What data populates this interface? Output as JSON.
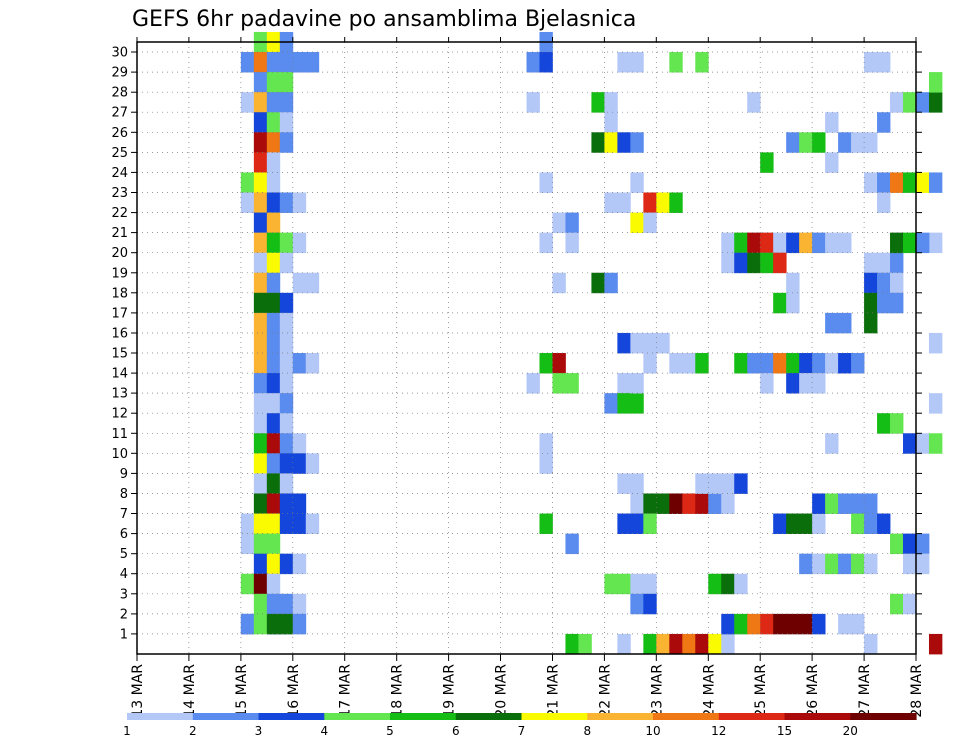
{
  "chart_data": {
    "type": "heatmap",
    "title": "GEFS 6hr padavine po ansamblima Bjelasnica",
    "y_ticks": [
      "1",
      "2",
      "3",
      "4",
      "5",
      "6",
      "7",
      "8",
      "9",
      "10",
      "11",
      "12",
      "13",
      "14",
      "15",
      "16",
      "17",
      "18",
      "19",
      "20",
      "21",
      "22",
      "23",
      "24",
      "25",
      "26",
      "27",
      "28",
      "29",
      "30"
    ],
    "x_ticks": [
      "13 MAR",
      "14 MAR",
      "15 MAR",
      "16 MAR",
      "17 MAR",
      "18 MAR",
      "19 MAR",
      "20 MAR",
      "21 MAR",
      "22 MAR",
      "23 MAR",
      "24 MAR",
      "25 MAR",
      "26 MAR",
      "27 MAR",
      "28 MAR"
    ],
    "legend_labels": [
      "1",
      "2",
      "3",
      "4",
      "5",
      "6",
      "7",
      "8",
      "10",
      "12",
      "15",
      "20"
    ],
    "legend_colors": [
      "#b4c8f8",
      "#5a8cf0",
      "#1446dc",
      "#64e650",
      "#14be14",
      "#0a6e0a",
      "#fafa00",
      "#fab432",
      "#f07814",
      "#dc2814",
      "#aa0a0a",
      "#6e0000"
    ],
    "x_columns_per_day": 4,
    "x_start_day": 13,
    "ylim": [
      0,
      30
    ],
    "grid": true,
    "cells": [
      [
        8,
        1,
        2
      ],
      [
        10,
        1,
        3
      ],
      [
        10,
        2,
        3
      ],
      [
        11,
        1,
        2
      ],
      [
        9,
        30,
        4
      ],
      [
        10,
        30,
        7
      ],
      [
        11,
        30,
        2
      ],
      [
        8,
        29,
        2
      ],
      [
        9,
        29,
        9
      ],
      [
        10,
        29,
        2
      ],
      [
        11,
        29,
        2
      ],
      [
        9,
        28,
        2
      ],
      [
        10,
        28,
        4
      ],
      [
        11,
        28,
        4
      ],
      [
        8,
        27,
        1
      ],
      [
        9,
        27,
        8
      ],
      [
        10,
        27,
        2
      ],
      [
        11,
        27,
        2
      ],
      [
        9,
        26,
        3
      ],
      [
        10,
        26,
        4
      ],
      [
        11,
        26,
        1
      ],
      [
        9,
        25,
        11
      ],
      [
        10,
        25,
        9
      ],
      [
        11,
        25,
        2
      ],
      [
        9,
        24,
        10
      ],
      [
        10,
        24,
        1
      ],
      [
        8,
        23,
        4
      ],
      [
        9,
        23,
        7
      ],
      [
        10,
        23,
        1
      ],
      [
        8,
        22,
        1
      ],
      [
        9,
        22,
        8
      ],
      [
        10,
        22,
        3
      ],
      [
        11,
        22,
        2
      ],
      [
        9,
        21,
        3
      ],
      [
        10,
        21,
        8
      ],
      [
        9,
        20,
        8
      ],
      [
        10,
        20,
        5
      ],
      [
        11,
        20,
        4
      ],
      [
        9,
        19,
        1
      ],
      [
        10,
        19,
        7
      ],
      [
        11,
        19,
        1
      ],
      [
        9,
        18,
        8
      ],
      [
        10,
        18,
        2
      ],
      [
        9,
        17,
        6
      ],
      [
        10,
        17,
        6
      ],
      [
        11,
        17,
        3
      ],
      [
        9,
        16,
        8
      ],
      [
        10,
        16,
        2
      ],
      [
        11,
        16,
        1
      ],
      [
        9,
        15,
        8
      ],
      [
        10,
        15,
        2
      ],
      [
        11,
        15,
        1
      ],
      [
        9,
        14,
        8
      ],
      [
        10,
        14,
        2
      ],
      [
        11,
        14,
        1
      ],
      [
        9,
        13,
        2
      ],
      [
        10,
        13,
        3
      ],
      [
        11,
        13,
        1
      ],
      [
        9,
        12,
        1
      ],
      [
        10,
        12,
        1
      ],
      [
        11,
        12,
        2
      ],
      [
        9,
        11,
        1
      ],
      [
        10,
        11,
        3
      ],
      [
        11,
        11,
        1
      ],
      [
        9,
        10,
        5
      ],
      [
        10,
        10,
        11
      ],
      [
        11,
        10,
        2
      ],
      [
        9,
        9,
        7
      ],
      [
        10,
        9,
        2
      ],
      [
        11,
        9,
        3
      ],
      [
        9,
        8,
        1
      ],
      [
        10,
        8,
        6
      ],
      [
        11,
        8,
        1
      ],
      [
        9,
        7,
        6
      ],
      [
        10,
        7,
        11
      ],
      [
        11,
        7,
        3
      ],
      [
        8,
        6,
        1
      ],
      [
        9,
        6,
        7
      ],
      [
        10,
        6,
        7
      ],
      [
        11,
        6,
        3
      ],
      [
        8,
        5,
        1
      ],
      [
        9,
        5,
        4
      ],
      [
        10,
        5,
        4
      ],
      [
        9,
        4,
        3
      ],
      [
        10,
        4,
        7
      ],
      [
        11,
        4,
        3
      ],
      [
        8,
        3,
        4
      ],
      [
        9,
        3,
        12
      ],
      [
        10,
        3,
        1
      ],
      [
        9,
        2,
        4
      ],
      [
        10,
        2,
        2
      ],
      [
        11,
        2,
        2
      ],
      [
        8,
        1,
        2
      ],
      [
        9,
        1,
        4
      ],
      [
        10,
        1,
        6
      ],
      [
        11,
        1,
        6
      ],
      [
        12,
        29,
        2
      ],
      [
        13,
        29,
        2
      ],
      [
        12,
        22,
        1
      ],
      [
        12,
        20,
        1
      ],
      [
        12,
        18,
        1
      ],
      [
        13,
        18,
        1
      ],
      [
        12,
        14,
        2
      ],
      [
        13,
        14,
        1
      ],
      [
        12,
        10,
        1
      ],
      [
        12,
        9,
        3
      ],
      [
        13,
        9,
        1
      ],
      [
        12,
        7,
        3
      ],
      [
        12,
        6,
        3
      ],
      [
        13,
        6,
        1
      ],
      [
        12,
        4,
        1
      ],
      [
        12,
        2,
        1
      ],
      [
        12,
        1,
        2
      ],
      [
        31,
        30,
        2
      ],
      [
        30,
        29,
        2
      ],
      [
        31,
        29,
        3
      ],
      [
        30,
        27,
        1
      ],
      [
        31,
        23,
        1
      ],
      [
        32,
        21,
        1
      ],
      [
        33,
        21,
        2
      ],
      [
        31,
        20,
        1
      ],
      [
        33,
        20,
        1
      ],
      [
        32,
        18,
        1
      ],
      [
        31,
        14,
        5
      ],
      [
        32,
        14,
        11
      ],
      [
        30,
        13,
        1
      ],
      [
        32,
        13,
        4
      ],
      [
        33,
        13,
        4
      ],
      [
        31,
        10,
        1
      ],
      [
        31,
        9,
        1
      ],
      [
        31,
        6,
        5
      ],
      [
        33,
        5,
        2
      ],
      [
        33,
        0,
        5
      ],
      [
        34,
        0,
        4
      ],
      [
        35,
        27,
        5
      ],
      [
        36,
        27,
        1
      ],
      [
        36,
        26,
        1
      ],
      [
        36,
        22,
        1
      ],
      [
        37,
        22,
        1
      ],
      [
        35,
        18,
        6
      ],
      [
        36,
        18,
        2
      ],
      [
        37,
        13,
        1
      ],
      [
        36,
        12,
        2
      ],
      [
        37,
        12,
        5
      ],
      [
        38,
        12,
        5
      ],
      [
        37,
        8,
        1
      ],
      [
        36,
        3,
        4
      ],
      [
        37,
        3,
        4
      ],
      [
        37,
        0,
        1
      ],
      [
        35,
        25,
        6
      ],
      [
        36,
        25,
        7
      ],
      [
        37,
        25,
        3
      ],
      [
        38,
        25,
        2
      ],
      [
        37,
        29,
        1
      ],
      [
        38,
        29,
        1
      ],
      [
        38,
        23,
        1
      ],
      [
        39,
        22,
        10
      ],
      [
        40,
        22,
        7
      ],
      [
        41,
        22,
        5
      ],
      [
        38,
        21,
        7
      ],
      [
        39,
        21,
        1
      ],
      [
        37,
        15,
        3
      ],
      [
        38,
        15,
        1
      ],
      [
        39,
        15,
        1
      ],
      [
        40,
        15,
        1
      ],
      [
        39,
        14,
        1
      ],
      [
        38,
        13,
        1
      ],
      [
        38,
        8,
        1
      ],
      [
        38,
        7,
        1
      ],
      [
        39,
        7,
        6
      ],
      [
        40,
        7,
        6
      ],
      [
        41,
        7,
        12
      ],
      [
        42,
        7,
        10
      ],
      [
        43,
        7,
        11
      ],
      [
        44,
        7,
        2
      ],
      [
        45,
        7,
        1
      ],
      [
        37,
        6,
        3
      ],
      [
        38,
        6,
        3
      ],
      [
        39,
        6,
        4
      ],
      [
        38,
        3,
        1
      ],
      [
        39,
        3,
        1
      ],
      [
        38,
        2,
        2
      ],
      [
        39,
        2,
        3
      ],
      [
        39,
        0,
        5
      ],
      [
        40,
        0,
        8
      ],
      [
        41,
        0,
        11
      ],
      [
        42,
        0,
        9
      ],
      [
        43,
        0,
        11
      ],
      [
        44,
        0,
        7
      ],
      [
        45,
        0,
        1
      ],
      [
        41,
        29,
        4
      ],
      [
        43,
        29,
        4
      ],
      [
        41,
        14,
        1
      ],
      [
        42,
        14,
        1
      ],
      [
        43,
        14,
        5
      ],
      [
        43,
        8,
        1
      ],
      [
        44,
        8,
        1
      ],
      [
        45,
        8,
        1
      ],
      [
        46,
        8,
        3
      ],
      [
        44,
        3,
        5
      ],
      [
        45,
        3,
        6
      ],
      [
        46,
        3,
        1
      ],
      [
        45,
        20,
        1
      ],
      [
        46,
        20,
        5
      ],
      [
        47,
        20,
        11
      ],
      [
        48,
        20,
        10
      ],
      [
        49,
        20,
        1
      ],
      [
        50,
        20,
        3
      ],
      [
        51,
        20,
        8
      ],
      [
        52,
        20,
        2
      ],
      [
        53,
        20,
        1
      ],
      [
        54,
        20,
        1
      ],
      [
        45,
        19,
        1
      ],
      [
        46,
        19,
        3
      ],
      [
        47,
        19,
        6
      ],
      [
        48,
        19,
        5
      ],
      [
        49,
        19,
        10
      ],
      [
        47,
        27,
        1
      ],
      [
        48,
        24,
        5
      ],
      [
        50,
        25,
        2
      ],
      [
        50,
        18,
        1
      ],
      [
        49,
        17,
        5
      ],
      [
        50,
        17,
        1
      ],
      [
        46,
        14,
        5
      ],
      [
        47,
        14,
        2
      ],
      [
        48,
        14,
        2
      ],
      [
        49,
        14,
        9
      ],
      [
        50,
        14,
        5
      ],
      [
        51,
        14,
        3
      ],
      [
        52,
        14,
        2
      ],
      [
        53,
        14,
        1
      ],
      [
        54,
        14,
        3
      ],
      [
        55,
        14,
        2
      ],
      [
        48,
        13,
        1
      ],
      [
        50,
        13,
        3
      ],
      [
        51,
        13,
        1
      ],
      [
        52,
        13,
        1
      ],
      [
        49,
        6,
        3
      ],
      [
        50,
        6,
        6
      ],
      [
        51,
        6,
        6
      ],
      [
        52,
        6,
        1
      ],
      [
        45,
        1,
        3
      ],
      [
        46,
        1,
        5
      ],
      [
        47,
        1,
        9
      ],
      [
        48,
        1,
        10
      ],
      [
        49,
        1,
        12
      ],
      [
        50,
        1,
        12
      ],
      [
        51,
        1,
        12
      ],
      [
        52,
        1,
        3
      ],
      [
        54,
        1,
        1
      ],
      [
        55,
        1,
        1
      ],
      [
        51,
        25,
        4
      ],
      [
        52,
        25,
        5
      ],
      [
        54,
        25,
        2
      ],
      [
        55,
        25,
        1
      ],
      [
        56,
        25,
        1
      ],
      [
        53,
        26,
        1
      ],
      [
        53,
        24,
        1
      ],
      [
        52,
        7,
        3
      ],
      [
        53,
        7,
        4
      ],
      [
        54,
        7,
        2
      ],
      [
        55,
        7,
        2
      ],
      [
        56,
        7,
        2
      ],
      [
        55,
        6,
        4
      ],
      [
        56,
        6,
        2
      ],
      [
        57,
        6,
        3
      ],
      [
        51,
        4,
        2
      ],
      [
        52,
        4,
        1
      ],
      [
        53,
        4,
        4
      ],
      [
        54,
        4,
        2
      ],
      [
        55,
        4,
        4
      ],
      [
        56,
        4,
        1
      ],
      [
        53,
        10,
        1
      ],
      [
        53,
        16,
        2
      ],
      [
        54,
        16,
        2
      ],
      [
        56,
        29,
        1
      ],
      [
        57,
        29,
        1
      ],
      [
        56,
        23,
        1
      ],
      [
        57,
        23,
        2
      ],
      [
        58,
        23,
        9
      ],
      [
        59,
        23,
        5
      ],
      [
        60,
        23,
        7
      ],
      [
        61,
        23,
        2
      ],
      [
        57,
        22,
        1
      ],
      [
        56,
        19,
        1
      ],
      [
        57,
        19,
        1
      ],
      [
        58,
        19,
        2
      ],
      [
        56,
        18,
        3
      ],
      [
        57,
        18,
        2
      ],
      [
        58,
        18,
        1
      ],
      [
        56,
        17,
        6
      ],
      [
        57,
        17,
        2
      ],
      [
        58,
        17,
        2
      ],
      [
        56,
        16,
        6
      ],
      [
        57,
        11,
        5
      ],
      [
        58,
        11,
        4
      ],
      [
        58,
        27,
        1
      ],
      [
        59,
        27,
        4
      ],
      [
        60,
        27,
        2
      ],
      [
        61,
        27,
        6
      ],
      [
        57,
        26,
        2
      ],
      [
        58,
        2,
        4
      ],
      [
        59,
        2,
        1
      ],
      [
        58,
        5,
        4
      ],
      [
        59,
        5,
        3
      ],
      [
        60,
        5,
        2
      ],
      [
        59,
        4,
        1
      ],
      [
        60,
        4,
        1
      ],
      [
        59,
        10,
        3
      ],
      [
        60,
        10,
        1
      ],
      [
        61,
        10,
        4
      ],
      [
        61,
        12,
        1
      ],
      [
        61,
        20,
        1
      ],
      [
        58,
        20,
        6
      ],
      [
        59,
        20,
        5
      ],
      [
        60,
        20,
        2
      ],
      [
        61,
        15,
        1
      ],
      [
        61,
        28,
        4
      ],
      [
        61,
        0,
        11
      ],
      [
        56,
        0,
        1
      ]
    ]
  }
}
